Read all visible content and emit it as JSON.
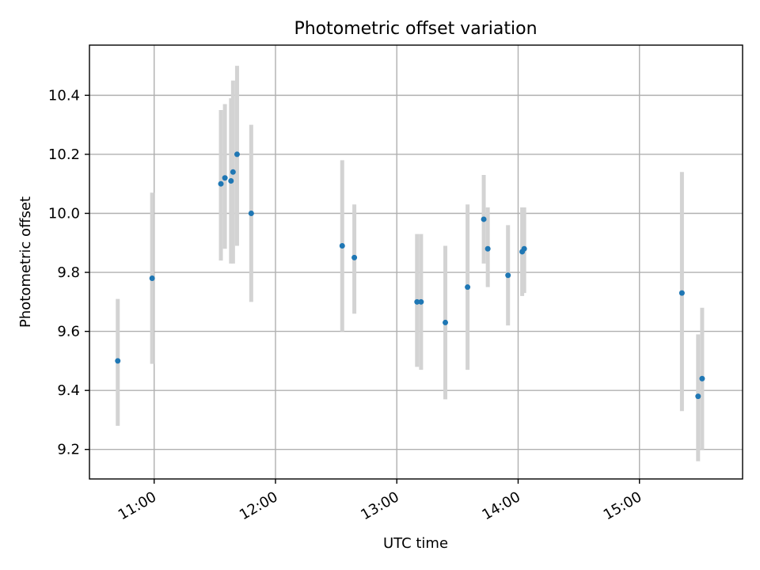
{
  "chart_data": {
    "type": "scatter",
    "title": "Photometric offset variation",
    "xlabel": "UTC time",
    "ylabel": "Photometric offset",
    "x_format": "HH:MM",
    "xlim": [
      "10:28",
      "15:51"
    ],
    "ylim": [
      9.1,
      10.57
    ],
    "xticks": [
      "11:00",
      "12:00",
      "13:00",
      "14:00",
      "15:00"
    ],
    "yticks": [
      9.2,
      9.4,
      9.6,
      9.8,
      10.0,
      10.2,
      10.4
    ],
    "grid": true,
    "legend": false,
    "colors": {
      "points": "#1f77b4",
      "errorbars": "#d3d3d3",
      "grid": "#b0b0b0"
    },
    "series": [
      {
        "points": [
          {
            "x": "10:42",
            "y": 9.5,
            "low": 9.28,
            "high": 9.71
          },
          {
            "x": "10:59",
            "y": 9.78,
            "low": 9.49,
            "high": 10.07
          },
          {
            "x": "11:33",
            "y": 10.1,
            "low": 9.84,
            "high": 10.35
          },
          {
            "x": "11:35",
            "y": 10.12,
            "low": 9.88,
            "high": 10.37
          },
          {
            "x": "11:38",
            "y": 10.11,
            "low": 9.83,
            "high": 10.39
          },
          {
            "x": "11:39",
            "y": 10.14,
            "low": 9.83,
            "high": 10.45
          },
          {
            "x": "11:41",
            "y": 10.2,
            "low": 9.89,
            "high": 10.5
          },
          {
            "x": "11:48",
            "y": 10.0,
            "low": 9.7,
            "high": 10.3
          },
          {
            "x": "12:33",
            "y": 9.89,
            "low": 9.6,
            "high": 10.18
          },
          {
            "x": "12:39",
            "y": 9.85,
            "low": 9.66,
            "high": 10.03
          },
          {
            "x": "13:10",
            "y": 9.7,
            "low": 9.48,
            "high": 9.93
          },
          {
            "x": "13:12",
            "y": 9.7,
            "low": 9.47,
            "high": 9.93
          },
          {
            "x": "13:24",
            "y": 9.63,
            "low": 9.37,
            "high": 9.89
          },
          {
            "x": "13:35",
            "y": 9.75,
            "low": 9.47,
            "high": 10.03
          },
          {
            "x": "13:43",
            "y": 9.98,
            "low": 9.83,
            "high": 10.13
          },
          {
            "x": "13:45",
            "y": 9.88,
            "low": 9.75,
            "high": 10.02
          },
          {
            "x": "13:55",
            "y": 9.79,
            "low": 9.62,
            "high": 9.96
          },
          {
            "x": "14:02",
            "y": 9.87,
            "low": 9.72,
            "high": 10.02
          },
          {
            "x": "14:03",
            "y": 9.88,
            "low": 9.73,
            "high": 10.02
          },
          {
            "x": "15:21",
            "y": 9.73,
            "low": 9.33,
            "high": 10.14
          },
          {
            "x": "15:29",
            "y": 9.38,
            "low": 9.16,
            "high": 9.59
          },
          {
            "x": "15:31",
            "y": 9.44,
            "low": 9.2,
            "high": 9.68
          }
        ]
      }
    ]
  }
}
